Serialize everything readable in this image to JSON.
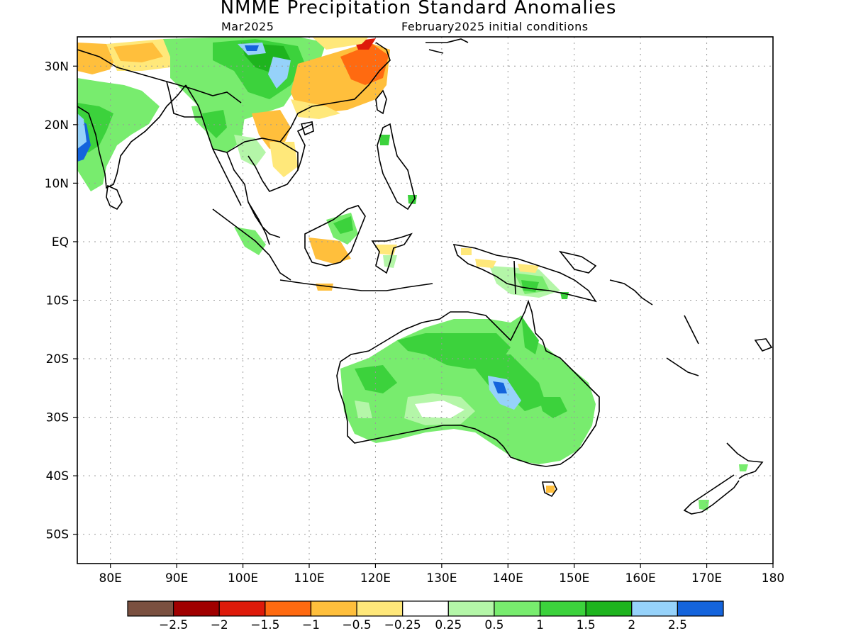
{
  "title": "NMME Precipitation Standard Anomalies",
  "valid_month": "Mar2025",
  "initial_conditions": "February2025 initial conditions",
  "map": {
    "lat_labels": [
      "30N",
      "20N",
      "10N",
      "EQ",
      "10S",
      "20S",
      "30S",
      "40S",
      "50S"
    ],
    "lon_labels": [
      "80E",
      "90E",
      "100E",
      "110E",
      "120E",
      "130E",
      "140E",
      "150E",
      "160E",
      "170E",
      "180"
    ]
  },
  "colorbar": {
    "colors": [
      "#7a5040",
      "#a00000",
      "#de1a0a",
      "#ff6a10",
      "#ffbf3c",
      "#ffe87a",
      "#ffffff",
      "#b4f6a8",
      "#78ec6e",
      "#3cd23c",
      "#1eb41e",
      "#96d2fa",
      "#1464dc"
    ],
    "tick_labels": [
      "-2.5",
      "-2",
      "-1.5",
      "-1",
      "-0.5",
      "-0.25",
      "0.25",
      "0.5",
      "1",
      "1.5",
      "2",
      "2.5"
    ]
  }
}
